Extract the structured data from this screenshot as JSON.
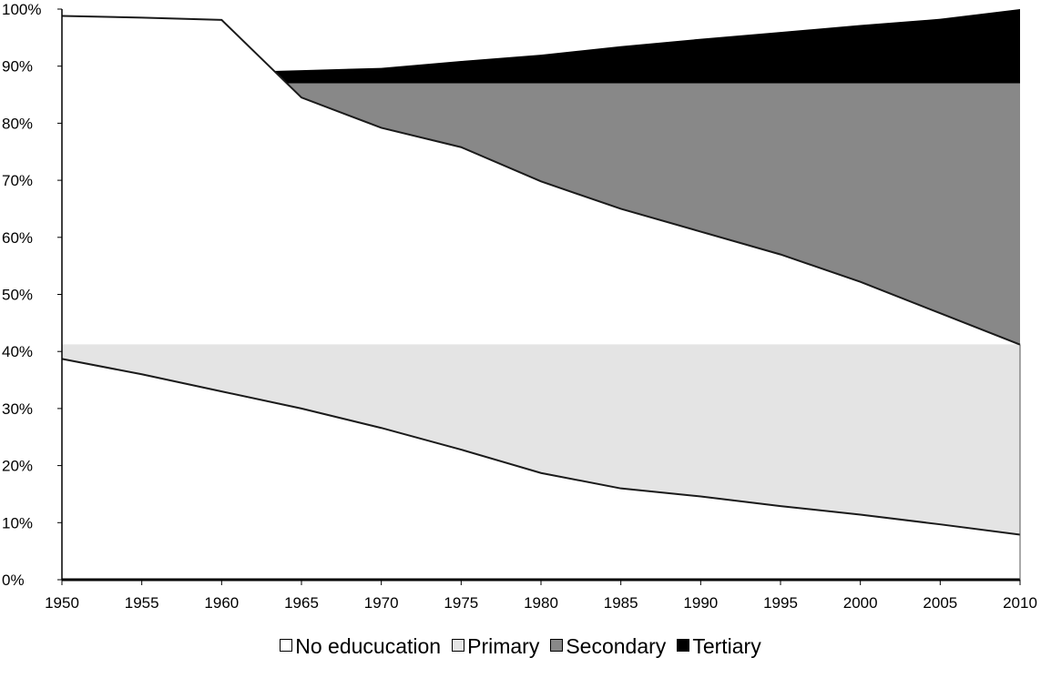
{
  "chart_data": {
    "type": "area",
    "stacked": true,
    "percent_axis": true,
    "x": [
      1950,
      1955,
      1960,
      1965,
      1970,
      1975,
      1980,
      1985,
      1990,
      1995,
      2000,
      2005,
      2010
    ],
    "x_tick_labels": [
      "1950",
      "1955",
      "1960",
      "1965",
      "1970",
      "1975",
      "1980",
      "1985",
      "1990",
      "1995",
      "2000",
      "2005",
      "2010"
    ],
    "y_tick_labels": [
      "0%",
      "10%",
      "20%",
      "30%",
      "40%",
      "50%",
      "60%",
      "70%",
      "80%",
      "90%",
      "100%"
    ],
    "ylim": [
      0,
      100
    ],
    "xlim": [
      1950,
      2010
    ],
    "grid": false,
    "legend_position": "bottom",
    "series": [
      {
        "name": "No educucation",
        "color": "#ffffff",
        "values": [
          38.7,
          36.0,
          33.0,
          30.0,
          26.6,
          22.8,
          18.7,
          16.0,
          14.6,
          12.9,
          11.4,
          9.7,
          7.9
        ]
      },
      {
        "name": "Primary",
        "color": "#e4e4e4",
        "values": [
          2.5,
          5.2,
          8.2,
          11.2,
          14.6,
          18.4,
          22.5,
          25.2,
          26.6,
          28.3,
          29.8,
          31.5,
          33.3
        ]
      },
      {
        "name": "Secondary",
        "color": "#888888",
        "values": [
          45.8,
          45.8,
          45.8,
          45.8,
          45.8,
          45.8,
          45.8,
          45.8,
          45.8,
          45.8,
          45.8,
          45.8,
          45.8
        ]
      },
      {
        "name": "Tertiary",
        "color": "#000000",
        "values": [
          1.2,
          1.5,
          1.9,
          2.3,
          2.7,
          3.9,
          5.0,
          6.5,
          7.8,
          9.0,
          10.2,
          11.3,
          13.0
        ]
      }
    ],
    "primary_white_overlay_to": [
      98.8,
      98.5,
      98.1,
      84.5,
      79.2,
      75.8,
      69.8,
      65.0,
      61.0,
      57.0,
      52.2,
      46.7,
      41.2
    ]
  }
}
